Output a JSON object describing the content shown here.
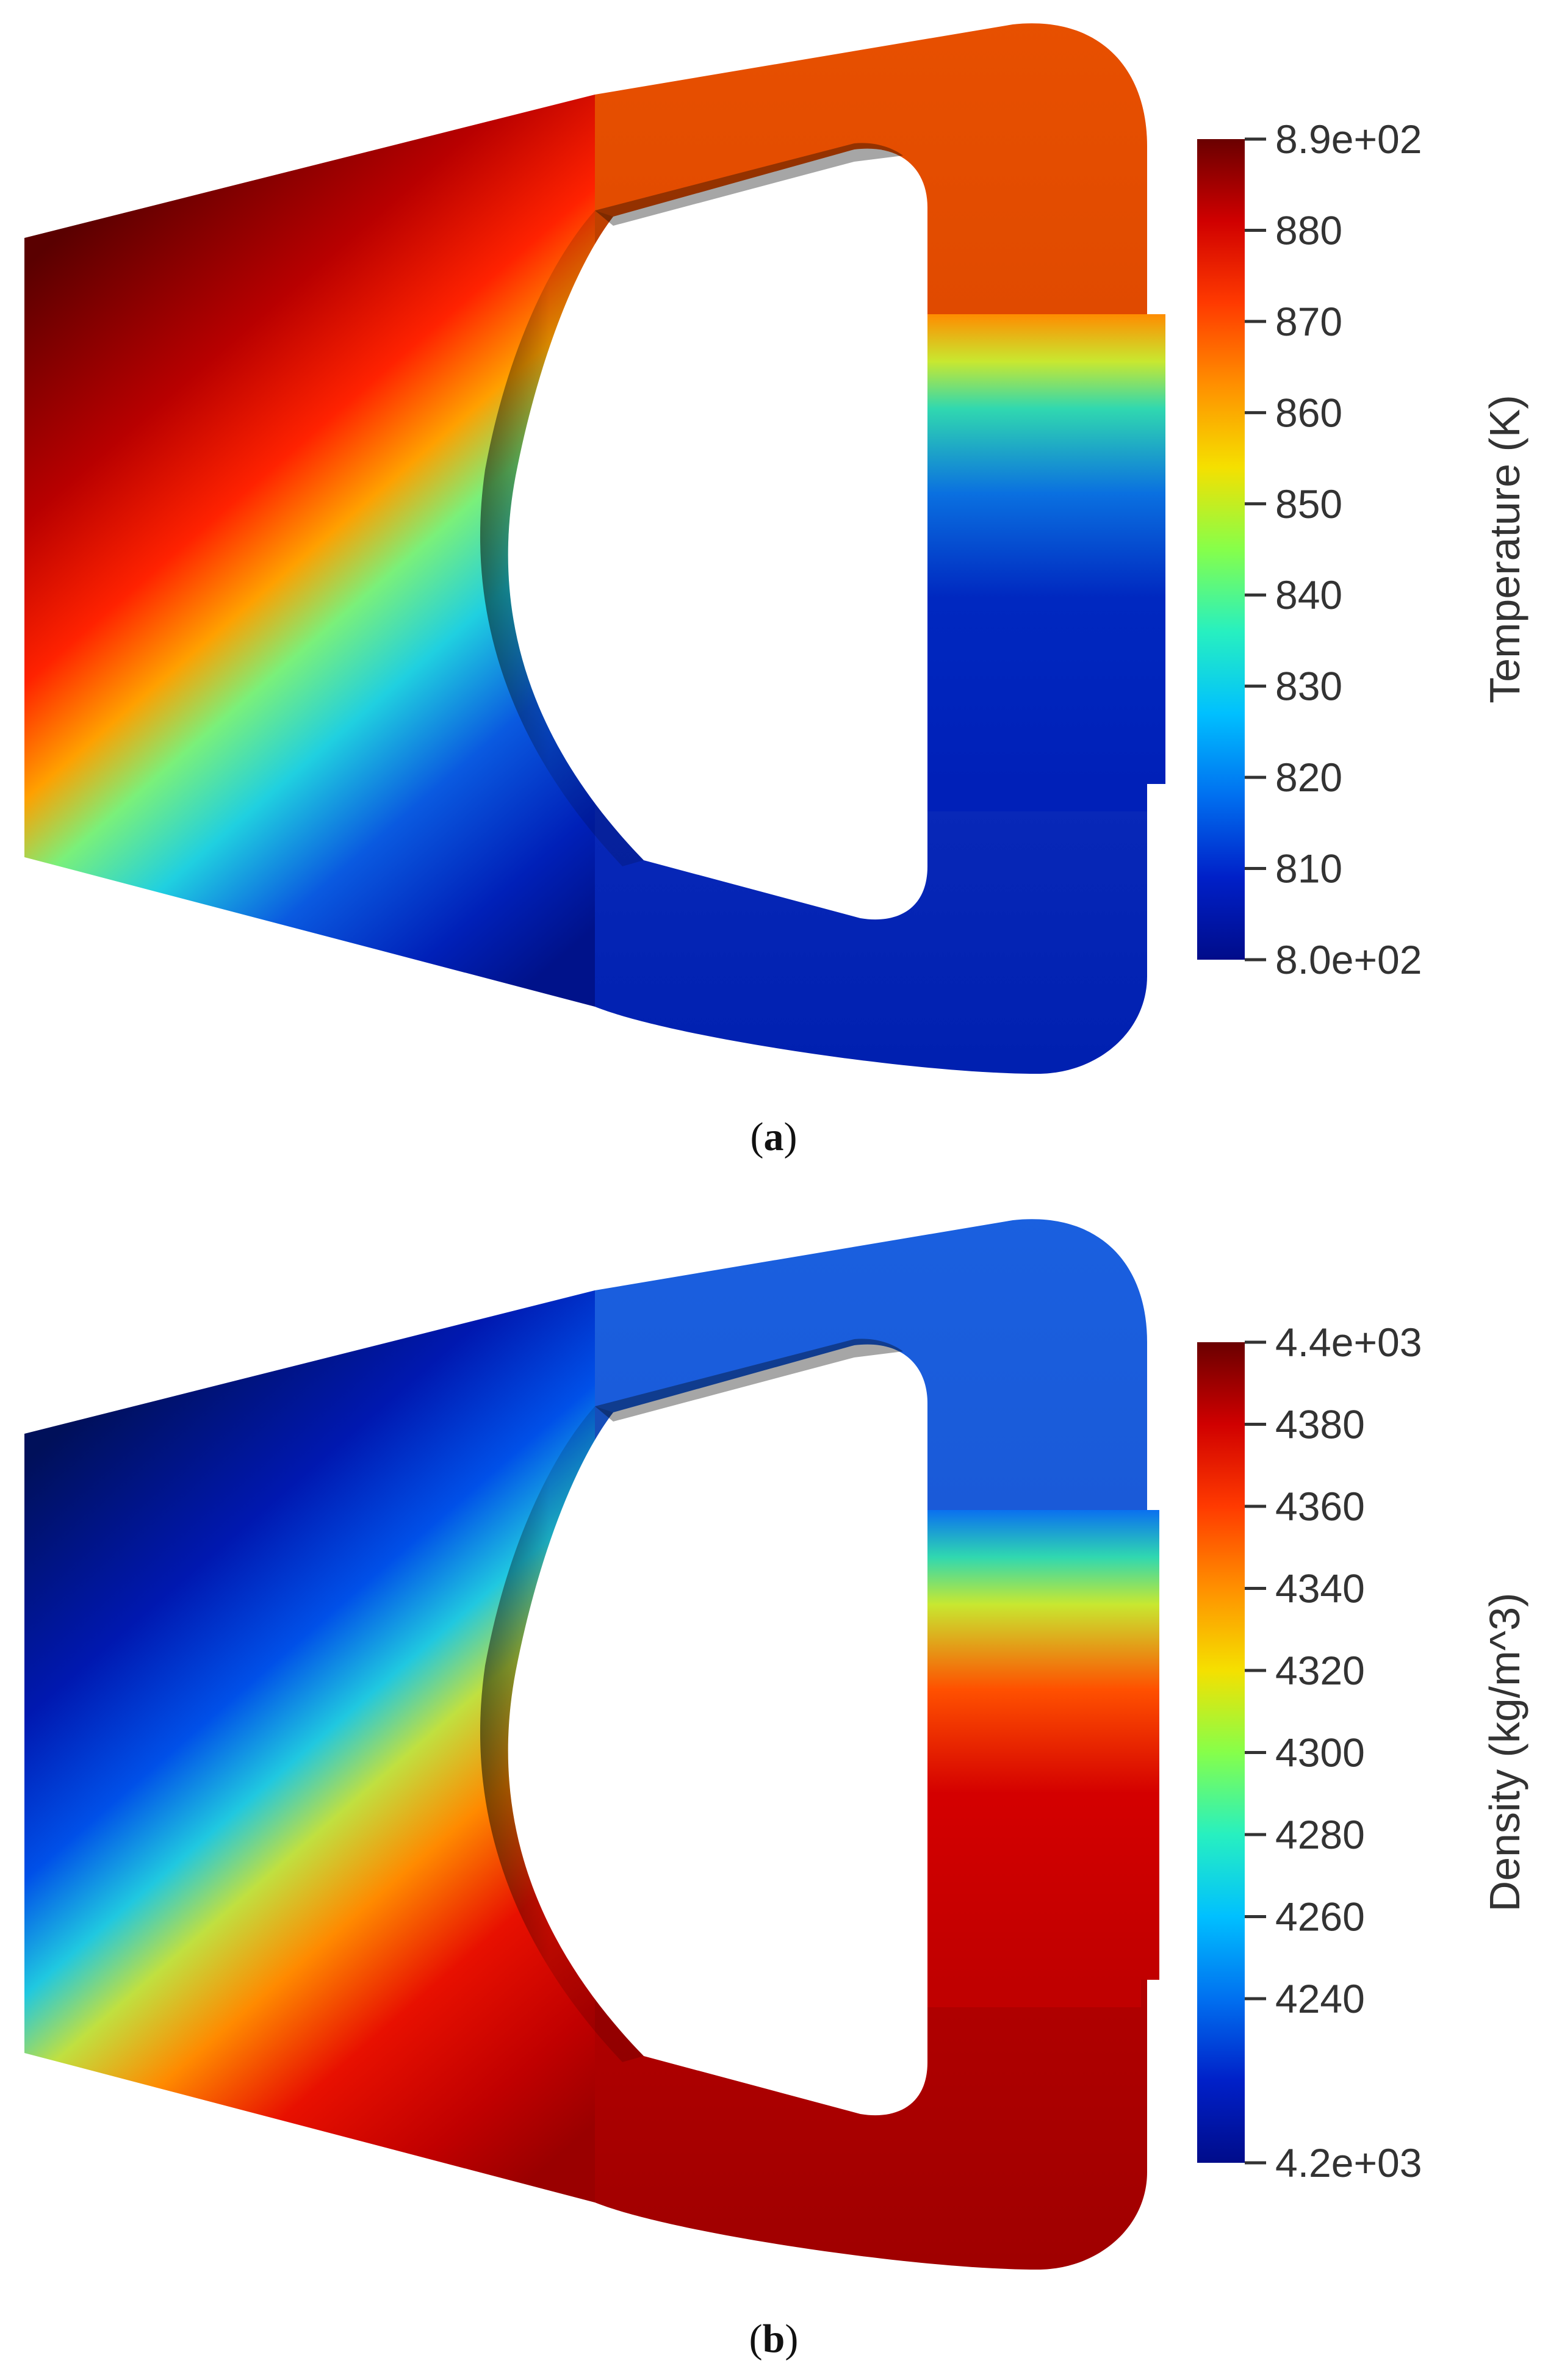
{
  "panels": [
    {
      "id": "a",
      "caption_open": "(",
      "caption_letter": "a",
      "caption_close": ")",
      "field": "temperature",
      "colorbar": {
        "title": "Temperature (K)",
        "min": 800,
        "max": 890,
        "ticks": [
          {
            "value": 890,
            "label": "8.9e+02"
          },
          {
            "value": 880,
            "label": "880"
          },
          {
            "value": 870,
            "label": "870"
          },
          {
            "value": 860,
            "label": "860"
          },
          {
            "value": 850,
            "label": "850"
          },
          {
            "value": 840,
            "label": "840"
          },
          {
            "value": 830,
            "label": "830"
          },
          {
            "value": 820,
            "label": "820"
          },
          {
            "value": 810,
            "label": "810"
          },
          {
            "value": 800,
            "label": "8.0e+02"
          }
        ]
      }
    },
    {
      "id": "b",
      "caption_open": "(",
      "caption_letter": "b",
      "caption_close": ")",
      "field": "density",
      "colorbar": {
        "title": "Density (kg/m^3)",
        "min": 4200,
        "max": 4400,
        "ticks": [
          {
            "value": 4400,
            "label": "4.4e+03"
          },
          {
            "value": 4380,
            "label": "4380"
          },
          {
            "value": 4360,
            "label": "4360"
          },
          {
            "value": 4340,
            "label": "4340"
          },
          {
            "value": 4320,
            "label": "4320"
          },
          {
            "value": 4300,
            "label": "4300"
          },
          {
            "value": 4280,
            "label": "4280"
          },
          {
            "value": 4260,
            "label": "4260"
          },
          {
            "value": 4240,
            "label": "4240"
          },
          {
            "value": 4200,
            "label": "4.2e+03"
          }
        ]
      }
    }
  ],
  "colors": {
    "colormap": [
      "#3b0000",
      "#6a0000",
      "#b40000",
      "#ff1a00",
      "#ff7a00",
      "#ffd000",
      "#b6ff36",
      "#36ffb0",
      "#00d8ff",
      "#0078ff",
      "#0018d8",
      "#00007a"
    ]
  }
}
